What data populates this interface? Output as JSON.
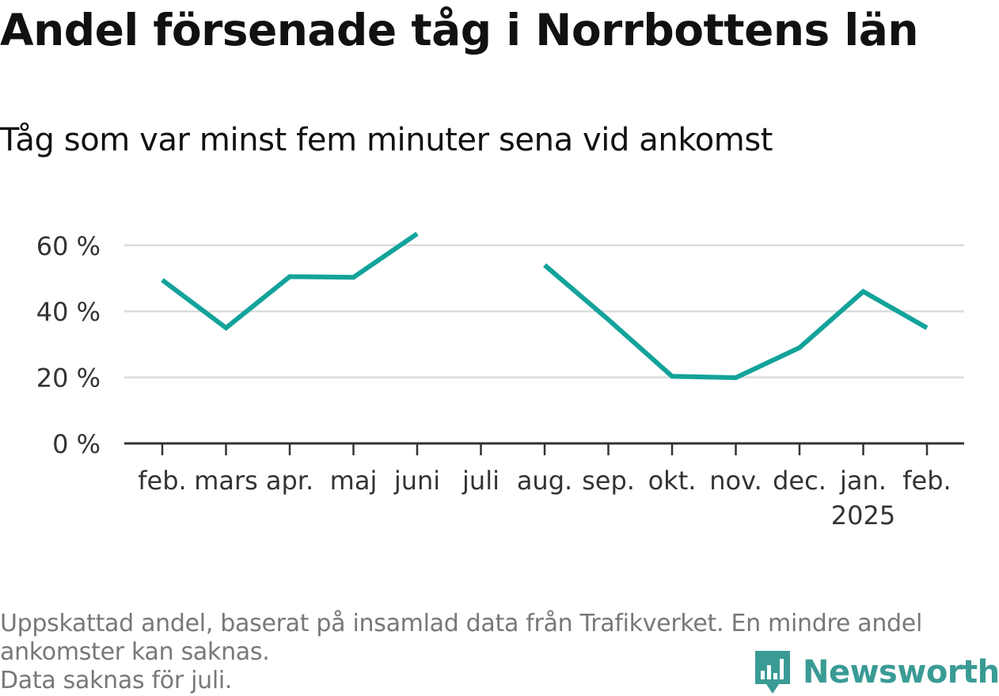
{
  "header": {
    "title": "Andel försenade tåg i Norrbottens län",
    "subtitle": "Tåg som var minst fem minuter sena vid ankomst"
  },
  "footer": {
    "note_line1": "Uppskattad andel, baserat på insamlad data från Trafikverket. En mindre andel",
    "note_line2": "ankomster kan saknas.",
    "note_line3": "Data saknas för juli."
  },
  "logo": {
    "name": "Newsworthy",
    "icon": "bar-chart-bubble-icon",
    "color": "#3a9b95"
  },
  "chart_data": {
    "type": "line",
    "title": "Andel försenade tåg i Norrbottens län",
    "subtitle": "Tåg som var minst fem minuter sena vid ankomst",
    "xlabel": "",
    "ylabel": "",
    "categories": [
      "feb.",
      "mars",
      "apr.",
      "maj",
      "juni",
      "juli",
      "aug.",
      "sep.",
      "okt.",
      "nov.",
      "dec.",
      "jan.",
      "feb."
    ],
    "category_sublabels": [
      "",
      "",
      "",
      "",
      "",
      "",
      "",
      "",
      "",
      "",
      "",
      "2025",
      ""
    ],
    "series": [
      {
        "values": [
          49.5,
          35,
          50.5,
          50.3,
          63.5,
          null,
          54,
          37.5,
          20.3,
          19.9,
          29,
          46,
          35
        ],
        "color": "#13a39a"
      }
    ],
    "ylim": [
      0,
      65
    ],
    "yticks": [
      0,
      20,
      40,
      60
    ],
    "ytick_labels": [
      "0 %",
      "20 %",
      "40 %",
      "60 %"
    ],
    "grid": true,
    "legend": "none"
  }
}
